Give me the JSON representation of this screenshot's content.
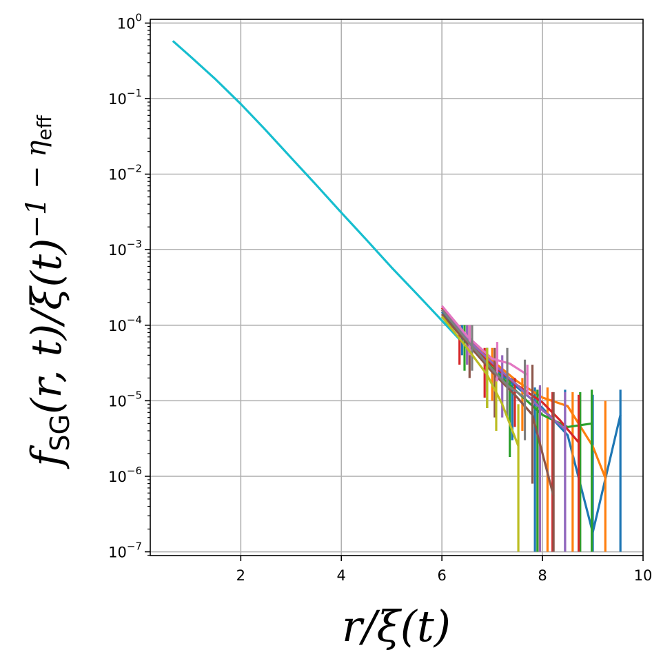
{
  "chart_data": {
    "type": "line",
    "xlabel": "r/ξ(t)",
    "ylabel": "f_SG(r, t)/ξ(t)^(−1 − η_eff)",
    "xlabel_parts": {
      "main": "r/ξ(t)"
    },
    "ylabel_parts": {
      "f": "f",
      "sub": "SG",
      "mid": "(r, t)/ξ(t)",
      "sup": "−1 − η",
      "supsub": "eff"
    },
    "xlim": [
      0.2,
      10
    ],
    "ylim_exponent": [
      -7.05,
      0.05
    ],
    "yscale": "log",
    "grid": true,
    "x_ticks": [
      {
        "value": 2,
        "label": "2"
      },
      {
        "value": 4,
        "label": "4"
      },
      {
        "value": 6,
        "label": "6"
      },
      {
        "value": 8,
        "label": "8"
      },
      {
        "value": 10,
        "label": "10"
      }
    ],
    "y_ticks": [
      {
        "exp": 0,
        "base": "10",
        "sup": "0"
      },
      {
        "exp": -1,
        "base": "10",
        "sup": "−1"
      },
      {
        "exp": -2,
        "base": "10",
        "sup": "−2"
      },
      {
        "exp": -3,
        "base": "10",
        "sup": "−3"
      },
      {
        "exp": -4,
        "base": "10",
        "sup": "−4"
      },
      {
        "exp": -5,
        "base": "10",
        "sup": "−5"
      },
      {
        "exp": -6,
        "base": "10",
        "sup": "−6"
      },
      {
        "exp": -7,
        "base": "10",
        "sup": "−7"
      }
    ],
    "series": [
      {
        "color": "#17becf",
        "x": [
          0.65,
          1.0,
          1.5,
          2.0,
          2.5,
          3.0,
          3.5,
          4.0,
          4.5,
          5.0,
          5.5,
          6.0,
          6.4
        ],
        "y": [
          0.58,
          0.36,
          0.18,
          0.085,
          0.038,
          0.0165,
          0.0072,
          0.0031,
          0.00135,
          0.00058,
          0.00026,
          0.000115,
          6e-05
        ]
      },
      {
        "color": "#1f77b4",
        "x": [
          6.0,
          6.5,
          7.0,
          7.5,
          8.0,
          8.5,
          9.0,
          9.55
        ],
        "y": [
          0.00015,
          6e-05,
          2.8e-05,
          1.5e-05,
          8e-06,
          3.5e-06,
          1.8e-07,
          6.5e-06
        ],
        "err_x": [
          6.4,
          6.9,
          7.4,
          7.85,
          8.45,
          9.0,
          9.55
        ],
        "err_lo": [
          4e-05,
          1.3e-05,
          3e-06,
          1e-07,
          1e-07,
          1e-07,
          1e-07
        ],
        "err_hi": [
          0.0001,
          5e-05,
          2e-05,
          1.5e-05,
          1.4e-05,
          1.2e-05,
          1.4e-05
        ]
      },
      {
        "color": "#ff7f0e",
        "x": [
          6.0,
          6.5,
          7.0,
          7.5,
          8.0,
          8.5,
          9.0,
          9.25
        ],
        "y": [
          0.00017,
          7e-05,
          3.4e-05,
          1.8e-05,
          1.1e-05,
          8.5e-06,
          2.5e-06,
          9.5e-07
        ],
        "err_x": [
          6.5,
          7.0,
          7.6,
          8.1,
          8.6,
          9.25
        ],
        "err_lo": [
          3e-05,
          1e-05,
          4e-06,
          1e-07,
          1e-07,
          1e-07
        ],
        "err_hi": [
          0.0001,
          5e-05,
          2e-05,
          1.5e-05,
          1.3e-05,
          1e-05
        ]
      },
      {
        "color": "#2ca02c",
        "x": [
          6.0,
          6.5,
          7.0,
          7.5,
          8.0,
          8.5,
          8.98
        ],
        "y": [
          0.00016,
          6.2e-05,
          2.7e-05,
          1.3e-05,
          6.5e-06,
          4.5e-06,
          5e-06
        ],
        "err_x": [
          6.45,
          6.9,
          7.35,
          7.9,
          8.75,
          8.98
        ],
        "err_lo": [
          2.5e-05,
          8e-06,
          1.8e-06,
          1e-07,
          1e-07,
          1e-07
        ],
        "err_hi": [
          0.0001,
          5e-05,
          2e-05,
          1.4e-05,
          1.3e-05,
          1.4e-05
        ]
      },
      {
        "color": "#d62728",
        "x": [
          6.0,
          6.5,
          7.0,
          7.5,
          8.0,
          8.35,
          8.72
        ],
        "y": [
          0.00017,
          6.8e-05,
          3e-05,
          1.6e-05,
          9.5e-06,
          5.5e-06,
          2.8e-06
        ],
        "err_x": [
          6.35,
          6.85,
          7.45,
          7.95,
          8.2,
          8.72
        ],
        "err_lo": [
          3e-05,
          1.1e-05,
          4.5e-06,
          1e-07,
          1e-07,
          1e-07
        ],
        "err_hi": [
          0.0001,
          5e-05,
          2e-05,
          1.5e-05,
          1.3e-05,
          1.2e-05
        ]
      },
      {
        "color": "#9467bd",
        "x": [
          6.0,
          6.5,
          7.0,
          7.5,
          8.0,
          8.45
        ],
        "y": [
          0.00016,
          6.6e-05,
          3.2e-05,
          1.6e-05,
          7.5e-06,
          4.2e-06
        ],
        "err_x": [
          6.5,
          7.2,
          7.95,
          8.45
        ],
        "err_lo": [
          3e-05,
          6e-06,
          1e-07,
          1e-07
        ],
        "err_hi": [
          0.0001,
          4e-05,
          1.6e-05,
          1.3e-05
        ]
      },
      {
        "color": "#8c564b",
        "x": [
          6.0,
          6.5,
          7.0,
          7.5,
          7.8,
          8.22
        ],
        "y": [
          0.00014,
          5.8e-05,
          2.4e-05,
          1.1e-05,
          6.5e-06,
          5.5e-07
        ],
        "err_x": [
          6.55,
          7.05,
          7.8,
          8.22
        ],
        "err_lo": [
          2e-05,
          6e-06,
          8e-07,
          1e-07
        ],
        "err_hi": [
          0.0001,
          5e-05,
          3e-05,
          1.3e-05
        ]
      },
      {
        "color": "#e377c2",
        "x": [
          6.0,
          6.5,
          7.0,
          7.35,
          7.7
        ],
        "y": [
          0.00018,
          7.2e-05,
          3.6e-05,
          3.1e-05,
          2.2e-05
        ],
        "err_x": [
          6.55,
          7.1,
          7.7
        ],
        "err_lo": [
          4e-05,
          1.8e-05,
          1.2e-05
        ],
        "err_hi": [
          0.0001,
          6e-05,
          3e-05
        ]
      },
      {
        "color": "#7f7f7f",
        "x": [
          6.0,
          6.5,
          7.0,
          7.3,
          7.65
        ],
        "y": [
          0.00016,
          6.3e-05,
          2.6e-05,
          1.6e-05,
          1.1e-05
        ],
        "err_x": [
          6.6,
          7.3,
          7.65
        ],
        "err_lo": [
          2.5e-05,
          6e-06,
          3e-06
        ],
        "err_hi": [
          0.0001,
          5e-05,
          3.5e-05
        ]
      },
      {
        "color": "#bcbd22",
        "x": [
          6.0,
          6.5,
          6.9,
          7.2,
          7.52
        ],
        "y": [
          0.00013,
          5e-05,
          2.2e-05,
          9e-06,
          2.5e-06
        ],
        "err_x": [
          6.9,
          7.08,
          7.52
        ],
        "err_lo": [
          8e-06,
          4e-06,
          1e-07
        ],
        "err_hi": [
          5e-05,
          1.8e-05,
          9e-06
        ]
      }
    ]
  }
}
